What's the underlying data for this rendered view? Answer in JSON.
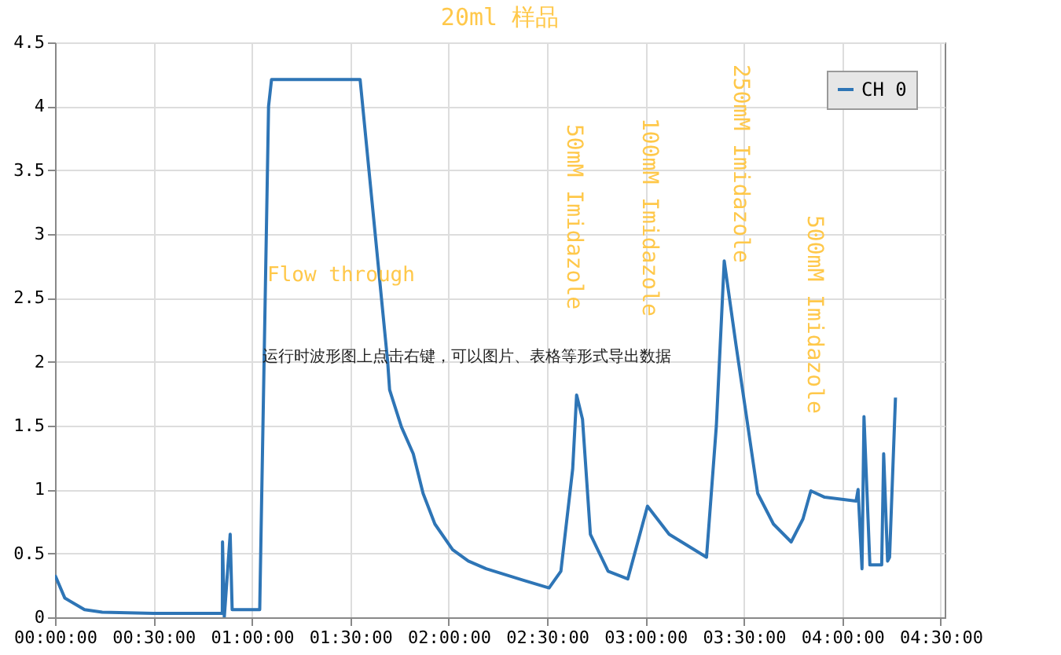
{
  "chart_data": {
    "type": "line",
    "title": "20ml 样品",
    "x": [
      0,
      0.05,
      0.15,
      0.24,
      0.5,
      0.85,
      0.851,
      0.86,
      0.89,
      0.9,
      1.04,
      1.085,
      1.1,
      1.55,
      1.69,
      1.7,
      1.76,
      1.82,
      1.87,
      1.93,
      2.02,
      2.1,
      2.19,
      2.38,
      2.51,
      2.57,
      2.63,
      2.65,
      2.68,
      2.72,
      2.81,
      2.91,
      3.01,
      3.12,
      3.31,
      3.36,
      3.4,
      3.46,
      3.57,
      3.65,
      3.74,
      3.8,
      3.84,
      3.91,
      4.07,
      4.08,
      4.1,
      4.11,
      4.14,
      4.2,
      4.21,
      4.23,
      4.24,
      4.27
    ],
    "series": [
      {
        "name": "CH 0",
        "color": "#2e75b6",
        "values": [
          0.33,
          0.15,
          0.06,
          0.04,
          0.03,
          0.03,
          0.59,
          0.0,
          0.65,
          0.06,
          0.06,
          4.0,
          4.21,
          4.21,
          2.0,
          1.78,
          1.49,
          1.28,
          0.97,
          0.73,
          0.53,
          0.44,
          0.38,
          0.29,
          0.23,
          0.36,
          1.16,
          1.74,
          1.55,
          0.65,
          0.36,
          0.3,
          0.87,
          0.65,
          0.47,
          1.5,
          2.79,
          2.13,
          0.97,
          0.73,
          0.59,
          0.77,
          0.99,
          0.94,
          0.91,
          1.0,
          0.38,
          1.57,
          0.41,
          0.41,
          1.28,
          0.44,
          0.47,
          1.72
        ]
      }
    ],
    "xlim": [
      0,
      4.52
    ],
    "xticks": [
      {
        "value": 0,
        "label": "00:00:00"
      },
      {
        "value": 0.5,
        "label": "00:30:00"
      },
      {
        "value": 1,
        "label": "01:00:00"
      },
      {
        "value": 1.5,
        "label": "01:30:00"
      },
      {
        "value": 2,
        "label": "02:00:00"
      },
      {
        "value": 2.5,
        "label": "02:30:00"
      },
      {
        "value": 3,
        "label": "03:00:00"
      },
      {
        "value": 3.5,
        "label": "03:30:00"
      },
      {
        "value": 4,
        "label": "04:00:00"
      },
      {
        "value": 4.5,
        "label": "04:30:00"
      }
    ],
    "ylim": [
      0,
      4.5
    ],
    "yticks": [
      0,
      0.5,
      1,
      1.5,
      2,
      2.5,
      3,
      3.5,
      4,
      4.5
    ],
    "grid": true,
    "legend": "top right",
    "annotations": [
      "Flow through",
      "50mM Imidazole",
      "100mM Imidazole",
      "250mM Imidazole",
      "500mM Imidazole",
      "运行时波形图上点击右键，可以图片、表格等形式导出数据"
    ]
  }
}
